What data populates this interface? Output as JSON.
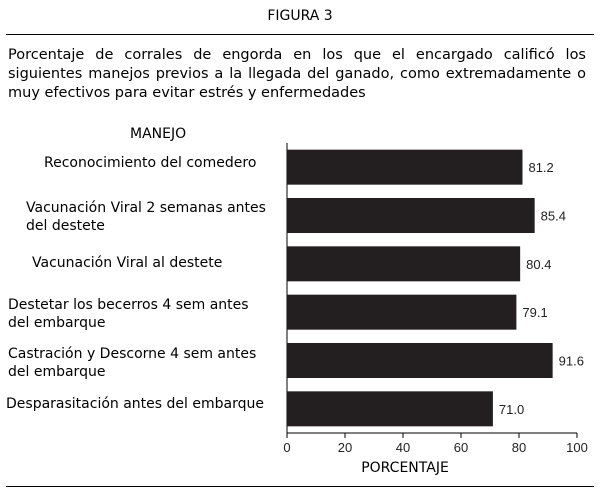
{
  "figure_label": "FIGURA 3",
  "caption": "Porcentaje de corrales de engorda en los que el encargado calificó los siguientes manejos previos a la llegada del ganado, como extremadamente o muy efectivos para evitar estrés y enfermedades",
  "chart_data": {
    "type": "bar",
    "orientation": "horizontal",
    "ylabel": "MANEJO",
    "xlabel": "PORCENTAJE",
    "categories": [
      "Reconocimiento del comedero",
      "Vacunación Viral 2 semanas antes del destete",
      "Vacunación Viral al destete",
      "Destetar los becerros  4 sem antes del embarque",
      "Castración y Descorne 4 sem antes del embarque",
      "Desparasitación antes del embarque"
    ],
    "values": [
      81.2,
      85.4,
      80.4,
      79.1,
      91.6,
      71.0
    ],
    "value_labels": [
      "81.2",
      "85.4",
      "80.4",
      "79.1",
      "91.6",
      "71.0"
    ],
    "xlim": [
      0,
      100
    ],
    "xticks": [
      "0",
      "20",
      "40",
      "60",
      "80",
      "100"
    ],
    "bar_color": "#231f20",
    "grid": false
  }
}
